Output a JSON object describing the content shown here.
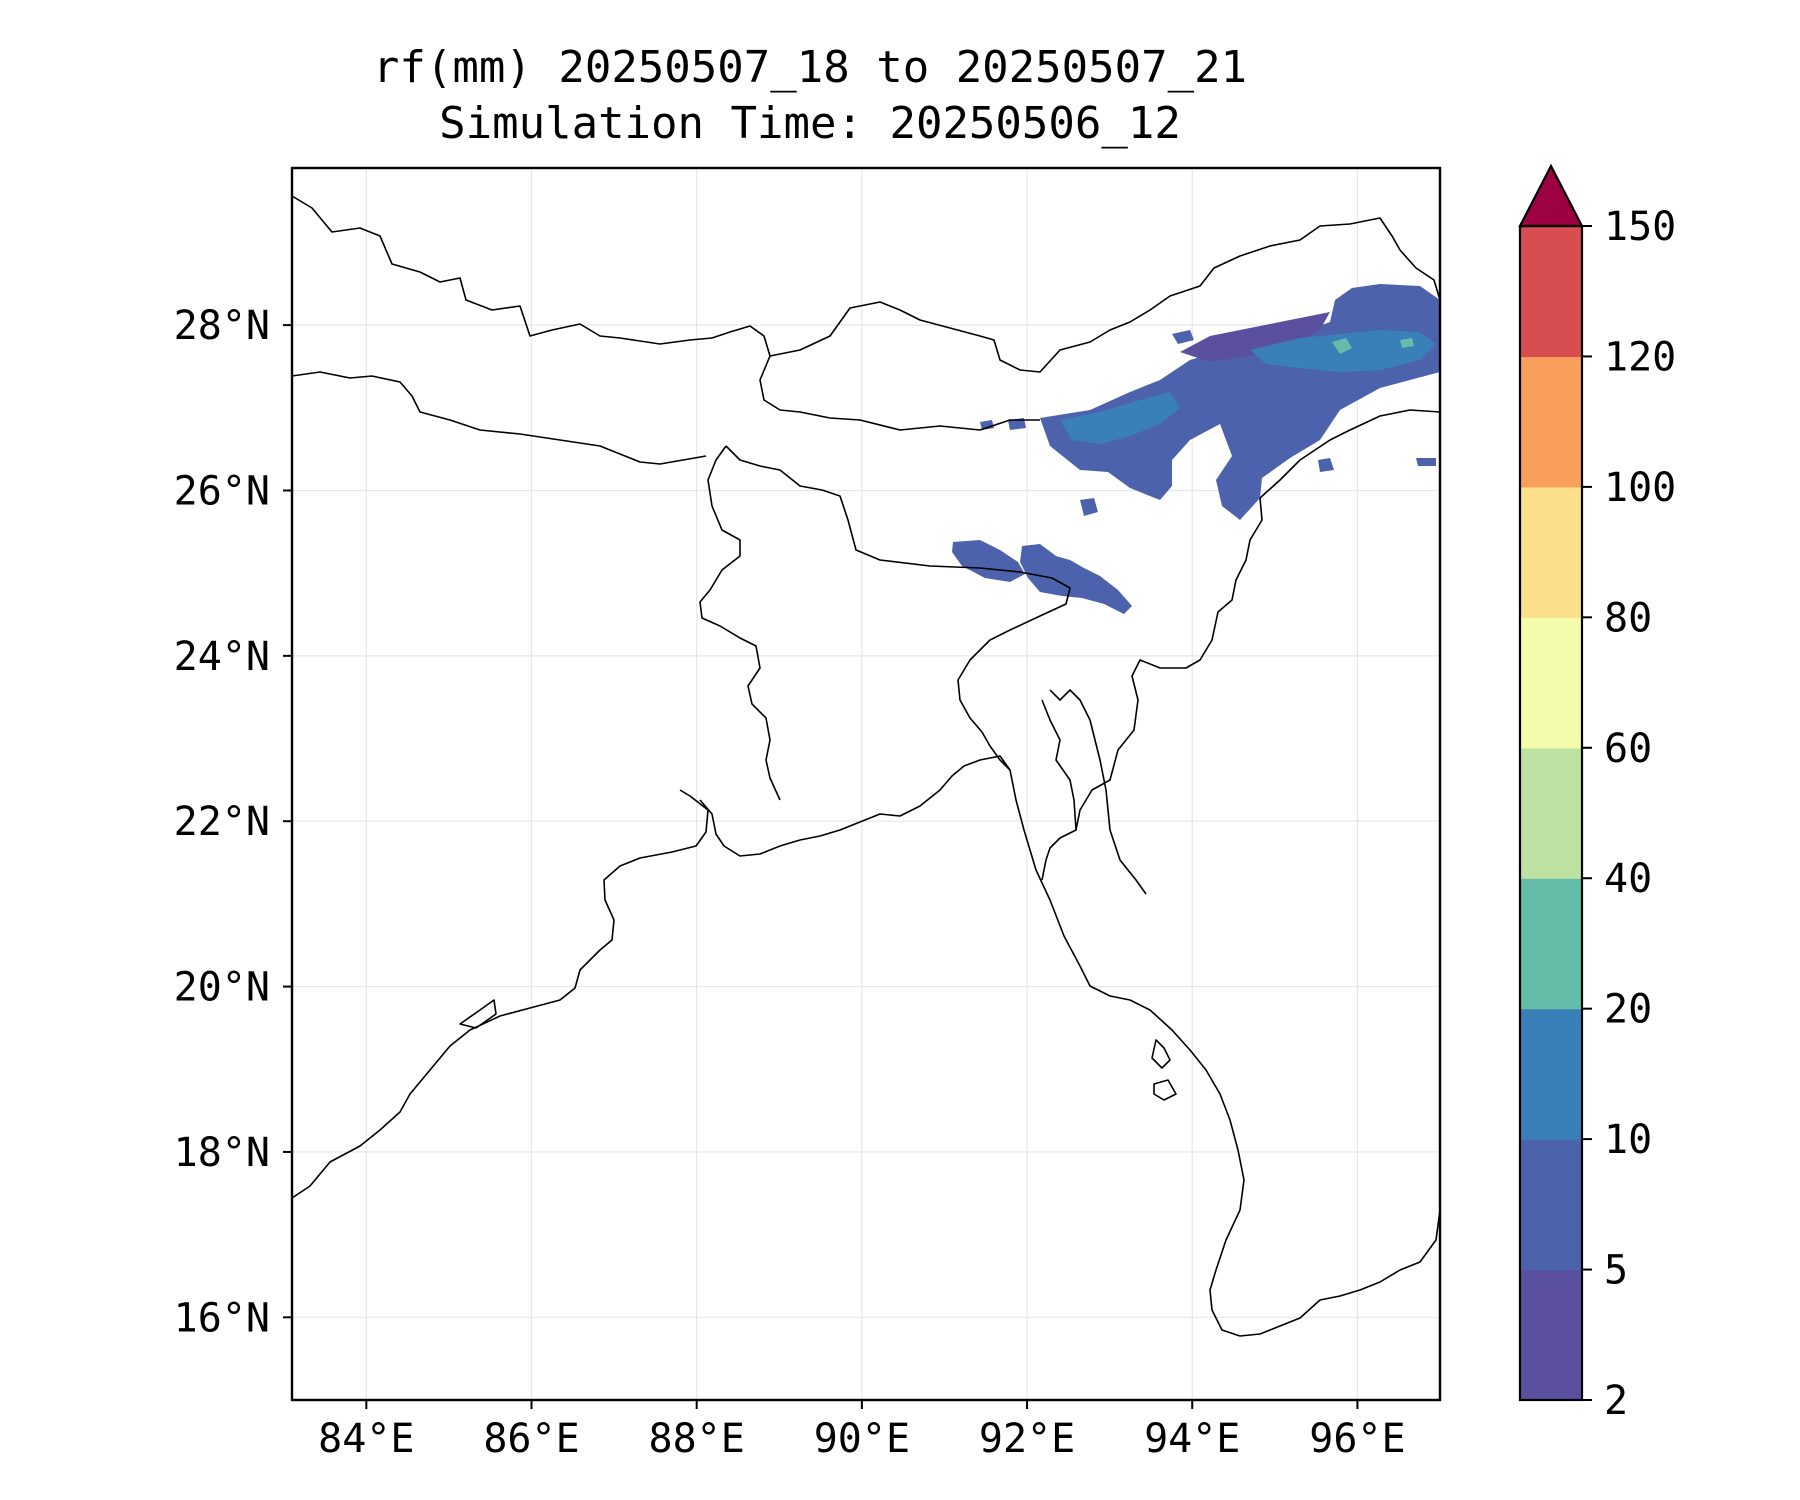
{
  "title": {
    "line1": "rf(mm) 20250507_18 to 20250507_21",
    "line2": "Simulation Time: 20250506_12"
  },
  "map": {
    "lon_range": [
      83.1,
      97.0
    ],
    "lat_range": [
      15.0,
      29.9
    ],
    "lon_ticks": [
      84,
      86,
      88,
      90,
      92,
      94,
      96
    ],
    "lat_ticks": [
      16,
      18,
      20,
      22,
      24,
      26,
      28
    ],
    "lon_tick_labels": [
      "84°E",
      "86°E",
      "88°E",
      "90°E",
      "92°E",
      "94°E",
      "96°E"
    ],
    "lat_tick_labels": [
      "16°N",
      "18°N",
      "20°N",
      "22°N",
      "24°N",
      "26°N",
      "28°N"
    ],
    "gridlines": true
  },
  "colorbar": {
    "levels": [
      "2",
      "5",
      "10",
      "20",
      "40",
      "60",
      "80",
      "100",
      "120",
      "150"
    ],
    "colors": [
      "#5b4f9f",
      "#4d62ad",
      "#3a80b8",
      "#63bda9",
      "#bde2a1",
      "#f4fbaa",
      "#fcdf8b",
      "#f89f5b",
      "#d84d4f",
      "#9e0142"
    ],
    "extend": "max"
  }
}
